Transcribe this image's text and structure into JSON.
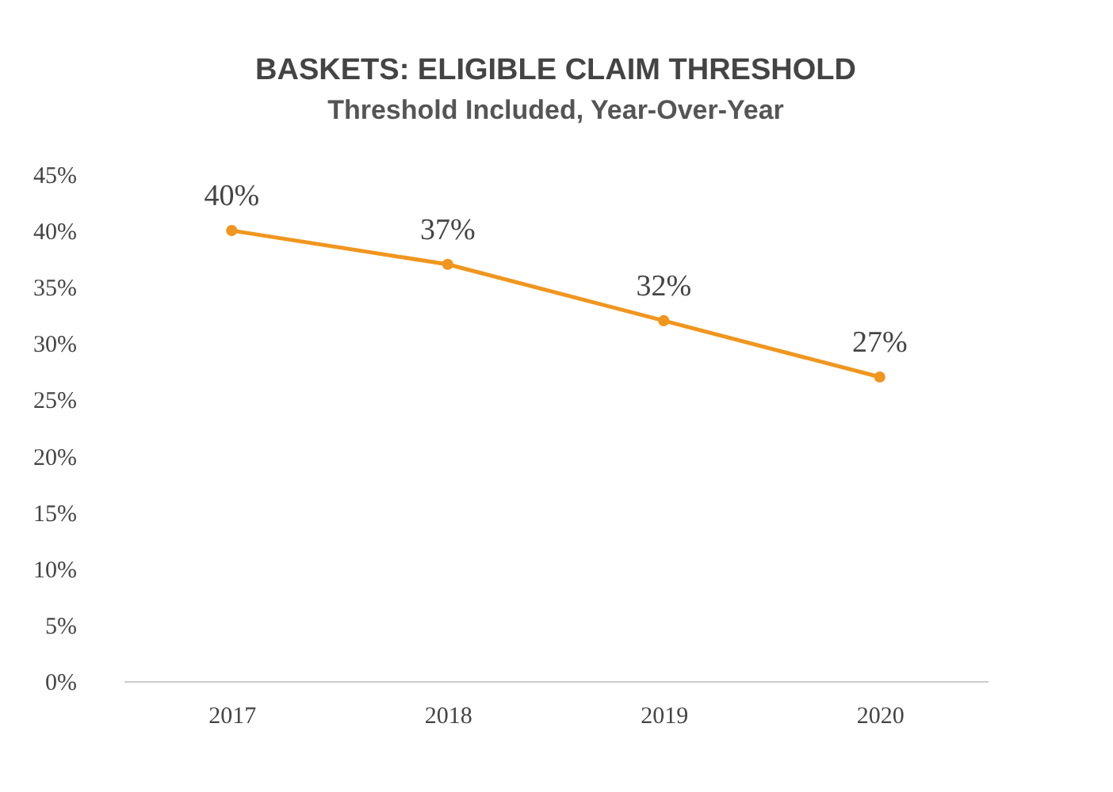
{
  "chart_data": {
    "type": "line",
    "title": "BASKETS: ELIGIBLE CLAIM THRESHOLD",
    "subtitle": "Threshold Included, Year-Over-Year",
    "categories": [
      "2017",
      "2018",
      "2019",
      "2020"
    ],
    "series": [
      {
        "color": "#f0961e",
        "values": [
          40,
          37,
          32,
          27
        ],
        "value_labels": [
          "40%",
          "37%",
          "32%",
          "27%"
        ]
      }
    ],
    "ylim": [
      0,
      45
    ],
    "yticks": [
      {
        "value": 0,
        "label": "0%"
      },
      {
        "value": 5,
        "label": "5%"
      },
      {
        "value": 10,
        "label": "10%"
      },
      {
        "value": 15,
        "label": "15%"
      },
      {
        "value": 20,
        "label": "20%"
      },
      {
        "value": 25,
        "label": "25%"
      },
      {
        "value": 30,
        "label": "30%"
      },
      {
        "value": 35,
        "label": "35%"
      },
      {
        "value": 40,
        "label": "40%"
      },
      {
        "value": 45,
        "label": "45%"
      }
    ],
    "grid": false,
    "legend": false,
    "marker": "circle",
    "line_style": "solid"
  }
}
